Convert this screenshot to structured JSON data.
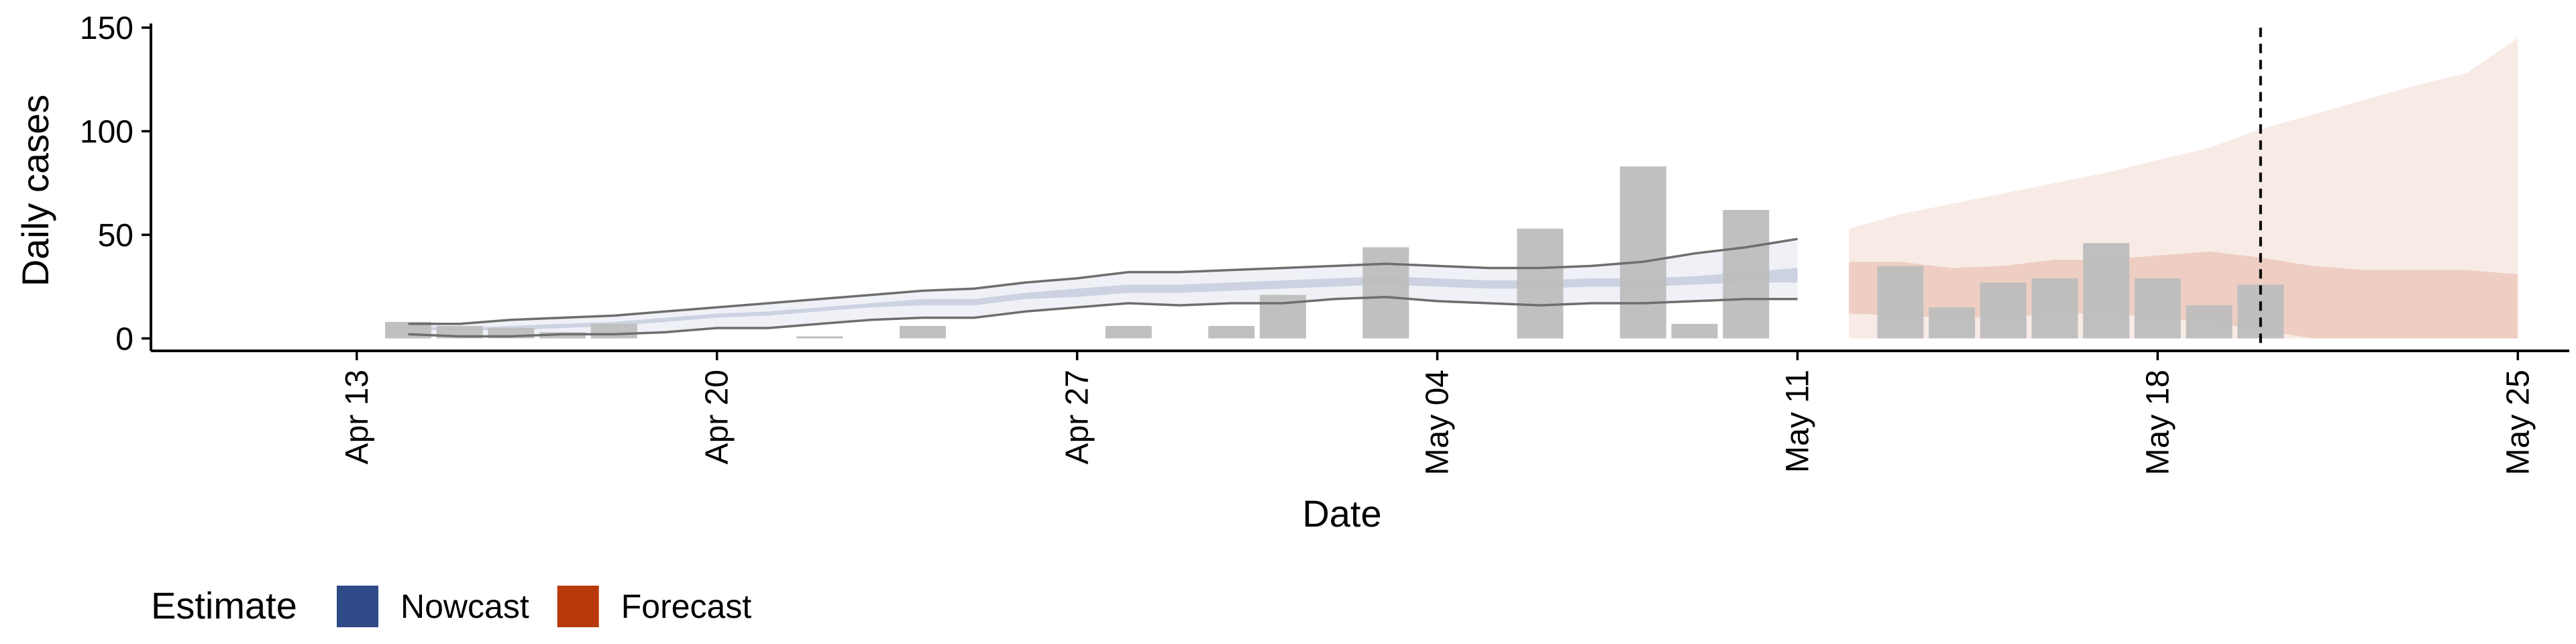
{
  "chart_data": {
    "type": "bar",
    "title": "",
    "xlabel": "Date",
    "ylabel": "Daily cases",
    "ylim": [
      -6,
      152
    ],
    "yticks": [
      0,
      50,
      100,
      150
    ],
    "xlim": [
      "2020-04-09",
      "2020-05-26"
    ],
    "xticks": [
      {
        "date": "2020-04-13",
        "label": "Apr 13"
      },
      {
        "date": "2020-04-20",
        "label": "Apr 20"
      },
      {
        "date": "2020-04-27",
        "label": "Apr 27"
      },
      {
        "date": "2020-05-04",
        "label": "May 04"
      },
      {
        "date": "2020-05-11",
        "label": "May 11"
      },
      {
        "date": "2020-05-18",
        "label": "May 18"
      },
      {
        "date": "2020-05-25",
        "label": "May 25"
      }
    ],
    "bars": [
      {
        "date": "2020-04-14",
        "value": 8
      },
      {
        "date": "2020-04-15",
        "value": 6
      },
      {
        "date": "2020-04-16",
        "value": 5
      },
      {
        "date": "2020-04-17",
        "value": 3
      },
      {
        "date": "2020-04-18",
        "value": 7
      },
      {
        "date": "2020-04-22",
        "value": 1
      },
      {
        "date": "2020-04-24",
        "value": 6
      },
      {
        "date": "2020-04-28",
        "value": 6
      },
      {
        "date": "2020-04-30",
        "value": 6
      },
      {
        "date": "2020-05-01",
        "value": 21
      },
      {
        "date": "2020-05-03",
        "value": 44
      },
      {
        "date": "2020-05-06",
        "value": 53
      },
      {
        "date": "2020-05-08",
        "value": 83
      },
      {
        "date": "2020-05-09",
        "value": 7
      },
      {
        "date": "2020-05-10",
        "value": 62
      },
      {
        "date": "2020-05-13",
        "value": 35
      },
      {
        "date": "2020-05-14",
        "value": 15
      },
      {
        "date": "2020-05-15",
        "value": 27
      },
      {
        "date": "2020-05-16",
        "value": 29
      },
      {
        "date": "2020-05-17",
        "value": 46
      },
      {
        "date": "2020-05-18",
        "value": 29
      },
      {
        "date": "2020-05-19",
        "value": 16
      },
      {
        "date": "2020-05-20",
        "value": 26
      }
    ],
    "series": [
      {
        "name": "Nowcast",
        "color": "#2e4a87",
        "dates": [
          "2020-04-14",
          "2020-04-15",
          "2020-04-16",
          "2020-04-17",
          "2020-04-18",
          "2020-04-19",
          "2020-04-20",
          "2020-04-21",
          "2020-04-22",
          "2020-04-23",
          "2020-04-24",
          "2020-04-25",
          "2020-04-26",
          "2020-04-27",
          "2020-04-28",
          "2020-04-29",
          "2020-04-30",
          "2020-05-01",
          "2020-05-02",
          "2020-05-03",
          "2020-05-04",
          "2020-05-05",
          "2020-05-06",
          "2020-05-07",
          "2020-05-08",
          "2020-05-09",
          "2020-05-10",
          "2020-05-11"
        ],
        "outer_lower": [
          2,
          1,
          1,
          2,
          2,
          3,
          5,
          5,
          7,
          9,
          10,
          10,
          13,
          15,
          17,
          16,
          17,
          17,
          19,
          20,
          18,
          17,
          16,
          17,
          17,
          18,
          19,
          19
        ],
        "outer_upper": [
          7,
          7,
          9,
          10,
          11,
          13,
          15,
          17,
          19,
          21,
          23,
          24,
          27,
          29,
          32,
          32,
          33,
          34,
          35,
          36,
          35,
          34,
          34,
          35,
          37,
          41,
          44,
          48
        ],
        "inner_lower": [
          4,
          4,
          4,
          5,
          6,
          8,
          10,
          11,
          13,
          15,
          16,
          16,
          19,
          20,
          22,
          22,
          23,
          24,
          25,
          26,
          25,
          24,
          24,
          25,
          25,
          26,
          27,
          27
        ],
        "inner_upper": [
          6,
          5,
          6,
          7,
          8,
          10,
          12,
          13,
          15,
          17,
          19,
          19,
          22,
          24,
          26,
          26,
          27,
          28,
          29,
          30,
          29,
          28,
          28,
          29,
          29,
          30,
          32,
          34
        ]
      },
      {
        "name": "Forecast",
        "color": "#b83a0c",
        "dates": [
          "2020-05-12",
          "2020-05-13",
          "2020-05-14",
          "2020-05-15",
          "2020-05-16",
          "2020-05-17",
          "2020-05-18",
          "2020-05-19",
          "2020-05-20",
          "2020-05-21",
          "2020-05-22",
          "2020-05-23",
          "2020-05-24",
          "2020-05-25"
        ],
        "outer_lower": [
          0,
          0,
          0,
          0,
          0,
          0,
          0,
          0,
          0,
          0,
          0,
          0,
          0,
          0
        ],
        "outer_upper": [
          53,
          60,
          65,
          70,
          75,
          80,
          86,
          92,
          101,
          108,
          115,
          122,
          128,
          145
        ],
        "inner_lower": [
          12,
          11,
          10,
          10,
          12,
          12,
          10,
          8,
          4,
          0,
          0,
          0,
          0,
          0
        ],
        "inner_upper": [
          37,
          37,
          34,
          35,
          38,
          38,
          40,
          42,
          39,
          35,
          33,
          33,
          33,
          31
        ]
      }
    ],
    "vline": {
      "date": "2020-05-20",
      "style": "dashed"
    },
    "legend": {
      "title": "Estimate",
      "position": "bottom-left",
      "entries": [
        "Nowcast",
        "Forecast"
      ]
    },
    "grid": false
  },
  "colors": {
    "bar": "#bdbdbd",
    "nowcast": "#2e4a87",
    "forecast": "#b83a0c",
    "envelope_line": "#6e6e6e"
  }
}
